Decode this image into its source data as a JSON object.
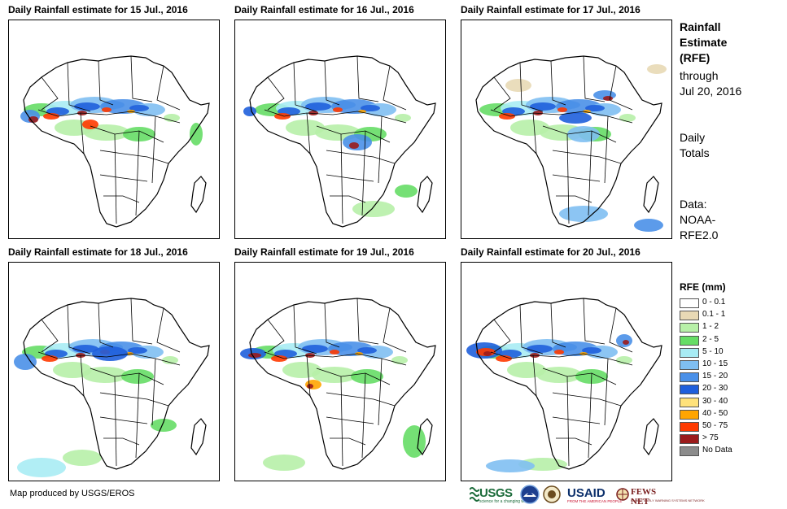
{
  "panels": [
    {
      "title": "Daily Rainfall estimate for 15 Jul., 2016"
    },
    {
      "title": "Daily Rainfall estimate for 16 Jul., 2016"
    },
    {
      "title": "Daily Rainfall estimate for 17 Jul., 2016"
    },
    {
      "title": "Daily Rainfall estimate for 18 Jul., 2016"
    },
    {
      "title": "Daily Rainfall estimate for 19 Jul., 2016"
    },
    {
      "title": "Daily Rainfall estimate for 20 Jul., 2016"
    }
  ],
  "side": {
    "title_line1": "Rainfall",
    "title_line2": "Estimate",
    "title_line3": "(RFE)",
    "through": "through",
    "date": "Jul 20, 2016",
    "totals_line1": "Daily",
    "totals_line2": "Totals",
    "data_line1": "Data:",
    "data_line2": "NOAA-",
    "data_line3": "RFE2.0"
  },
  "legend": {
    "title": "RFE (mm)",
    "items": [
      {
        "label": "0 - 0.1",
        "color": "#ffffff"
      },
      {
        "label": "0.1 - 1",
        "color": "#e8d9b5"
      },
      {
        "label": "1 - 2",
        "color": "#b7f0a8"
      },
      {
        "label": "2 - 5",
        "color": "#66dd66"
      },
      {
        "label": "5 - 10",
        "color": "#a8ecf4"
      },
      {
        "label": "10 - 15",
        "color": "#7fbff2"
      },
      {
        "label": "15 - 20",
        "color": "#4a90e8"
      },
      {
        "label": "20 - 30",
        "color": "#1f5fdc"
      },
      {
        "label": "30 - 40",
        "color": "#ffe27a"
      },
      {
        "label": "40 - 50",
        "color": "#ffa500"
      },
      {
        "label": "50 - 75",
        "color": "#ff3a00"
      },
      {
        "label": "> 75",
        "color": "#9b1b1b"
      },
      {
        "label": "No Data",
        "color": "#8c8c8c"
      }
    ]
  },
  "credit": "Map produced by USGS/EROS",
  "logos": {
    "usgs": "USGS",
    "usgs_tagline": "science for a changing world",
    "noaa_icon": "noaa-logo-icon",
    "doi_icon": "interior-seal-icon",
    "usaid": "USAID",
    "usaid_tagline": "FROM THE AMERICAN PEOPLE",
    "fews": "FEWS NET",
    "fews_tagline": "FAMINE EARLY WARNING SYSTEMS NETWORK"
  }
}
